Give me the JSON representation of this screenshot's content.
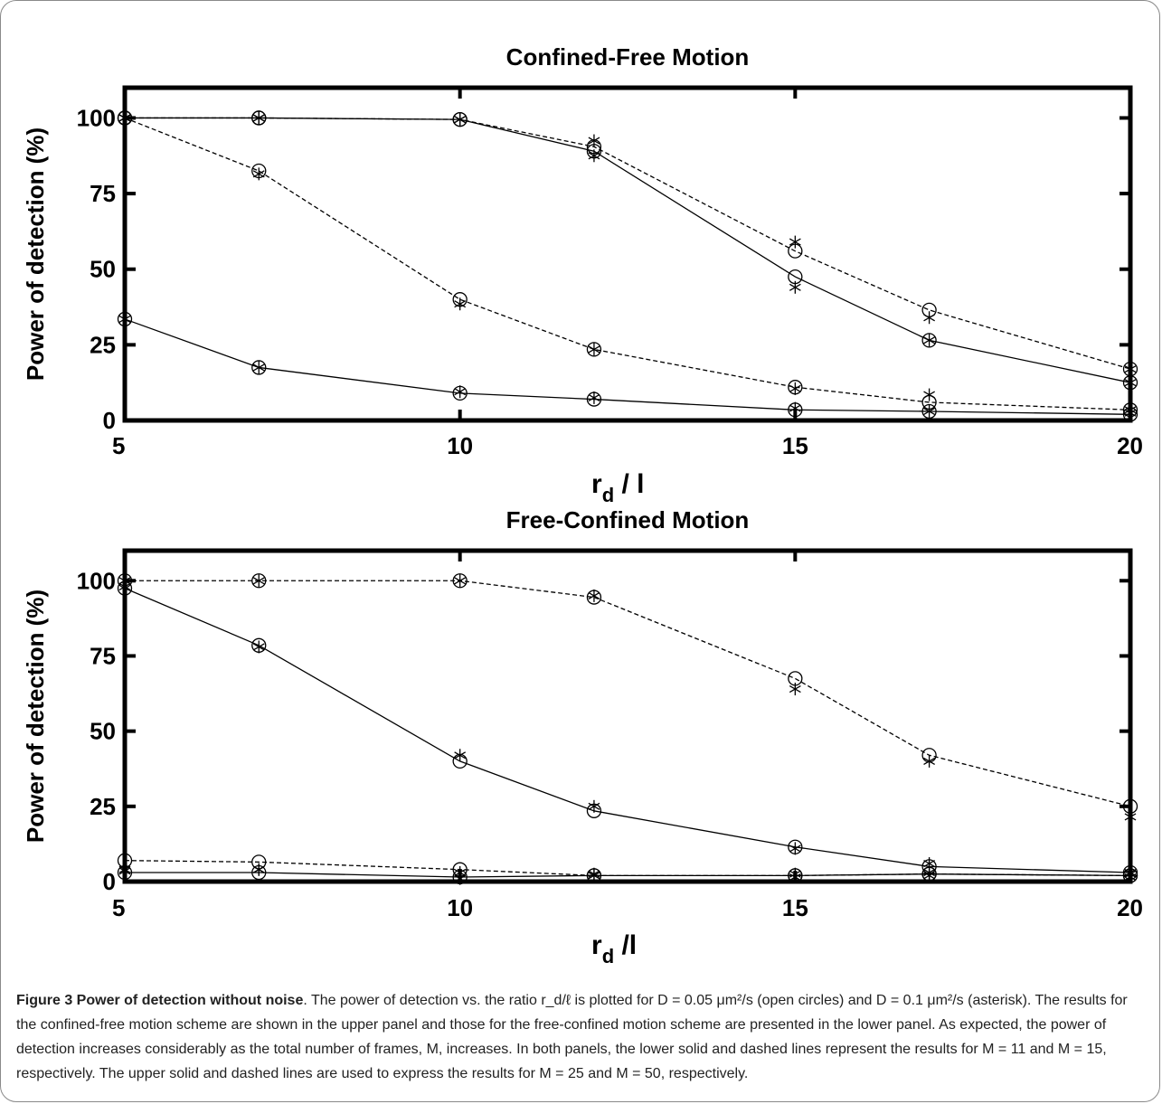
{
  "chart_data": [
    {
      "type": "line",
      "title": "Confined-Free Motion",
      "ylabel": "Power of detection (%)",
      "xlabel_main": "r",
      "xlabel_sub": "d",
      "xlabel_tail": " / l",
      "xlim": [
        5,
        20
      ],
      "ylim": [
        0,
        110
      ],
      "xticks": [
        5,
        10,
        15,
        20
      ],
      "yticks": [
        0,
        25,
        50,
        75,
        100
      ],
      "grid": false,
      "x": [
        5,
        7,
        10,
        12,
        15,
        17,
        20
      ],
      "series": [
        {
          "style": "solid",
          "circles": [
            33.5,
            17.5,
            9,
            7,
            3.5,
            3,
            2
          ],
          "asterisks": [
            33.5,
            17.5,
            9.5,
            7.5,
            4,
            3,
            2.5
          ]
        },
        {
          "style": "dashed",
          "circles": [
            100,
            82.5,
            40,
            23.5,
            11,
            6,
            3.5
          ],
          "asterisks": [
            100,
            81.5,
            38.5,
            23.5,
            10.5,
            8.5,
            3.5
          ]
        },
        {
          "style": "solid",
          "circles": [
            100,
            100,
            99.5,
            89,
            47.5,
            26.5,
            12.5
          ],
          "asterisks": [
            100,
            100,
            99.5,
            87.5,
            44,
            26.5,
            12.5
          ]
        },
        {
          "style": "dashed",
          "circles": [
            100,
            100,
            99.5,
            90.5,
            56,
            36.5,
            17
          ],
          "asterisks": [
            100,
            100,
            99.5,
            92.5,
            59,
            34,
            17
          ]
        }
      ]
    },
    {
      "type": "line",
      "title": "Free-Confined Motion",
      "ylabel": "Power of detection (%)",
      "xlabel_main": "r",
      "xlabel_sub": "d",
      "xlabel_tail": " /l",
      "xlim": [
        5,
        20
      ],
      "ylim": [
        0,
        110
      ],
      "xticks": [
        5,
        10,
        15,
        20
      ],
      "yticks": [
        0,
        25,
        50,
        75,
        100
      ],
      "grid": false,
      "x": [
        5,
        7,
        10,
        12,
        15,
        17,
        20
      ],
      "series": [
        {
          "style": "solid",
          "circles": [
            3,
            3,
            1.5,
            2,
            2,
            2.5,
            2
          ],
          "asterisks": [
            4,
            4,
            1,
            2.5,
            1.5,
            2,
            1.5
          ]
        },
        {
          "style": "dashed",
          "circles": [
            7,
            6.5,
            4,
            2,
            2,
            2.5,
            2
          ],
          "asterisks": [
            3.5,
            4,
            3,
            2,
            2.5,
            3,
            2.5
          ]
        },
        {
          "style": "solid",
          "circles": [
            97.5,
            78.5,
            40,
            23.5,
            11.5,
            5,
            3
          ],
          "asterisks": [
            98,
            78,
            42,
            25,
            11,
            6,
            3
          ]
        },
        {
          "style": "dashed",
          "circles": [
            100,
            100,
            100,
            94.5,
            67.5,
            42,
            25
          ],
          "asterisks": [
            100,
            100,
            100,
            95,
            64,
            40,
            21.5
          ]
        }
      ]
    }
  ],
  "caption": {
    "label": "Figure 3 Power of detection without noise",
    "text": "The power of detection vs. the ratio r_d/ℓ is plotted for D = 0.05 μm²/s (open circles) and D = 0.1 μm²/s (asterisk). The results for the confined-free motion scheme are shown in the upper panel and those for the free-confined motion scheme are presented in the lower panel. As expected, the power of detection increases considerably as the total number of frames, M, increases. In both panels, the lower solid and dashed lines represent the results for M = 11 and M = 15, respectively. The upper solid and dashed lines are used to express the results for M = 25 and M = 50, respectively."
  }
}
